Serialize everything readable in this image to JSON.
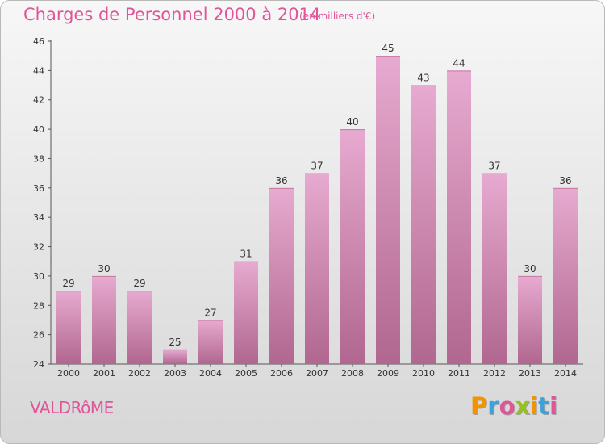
{
  "header": {
    "title": "Charges de Personnel 2000 à 2014",
    "unit_note": "(en milliers d'€)"
  },
  "footer": {
    "commune": "VALDRôME",
    "logo_text": "Proxiti"
  },
  "colors": {
    "title": "#e0559a",
    "bar_top": "#e7aad0",
    "bar_bottom": "#b1678f",
    "logo_letters": [
      "#f29400",
      "#3aa3db",
      "#e0559a",
      "#94c11f",
      "#f29400",
      "#3aa3db",
      "#e0559a"
    ]
  },
  "chart_data": {
    "type": "bar",
    "categories": [
      "2000",
      "2001",
      "2002",
      "2003",
      "2004",
      "2005",
      "2006",
      "2007",
      "2008",
      "2009",
      "2010",
      "2011",
      "2012",
      "2013",
      "2014"
    ],
    "values": [
      29,
      30,
      29,
      25,
      27,
      31,
      36,
      37,
      40,
      45,
      43,
      44,
      37,
      30,
      36
    ],
    "title": "Charges de Personnel 2000 à 2014",
    "xlabel": "",
    "ylabel": "",
    "ylim": [
      24,
      46
    ],
    "yticks": [
      24,
      26,
      28,
      30,
      32,
      34,
      36,
      38,
      40,
      42,
      44,
      46
    ],
    "grid": false,
    "legend": "none"
  }
}
